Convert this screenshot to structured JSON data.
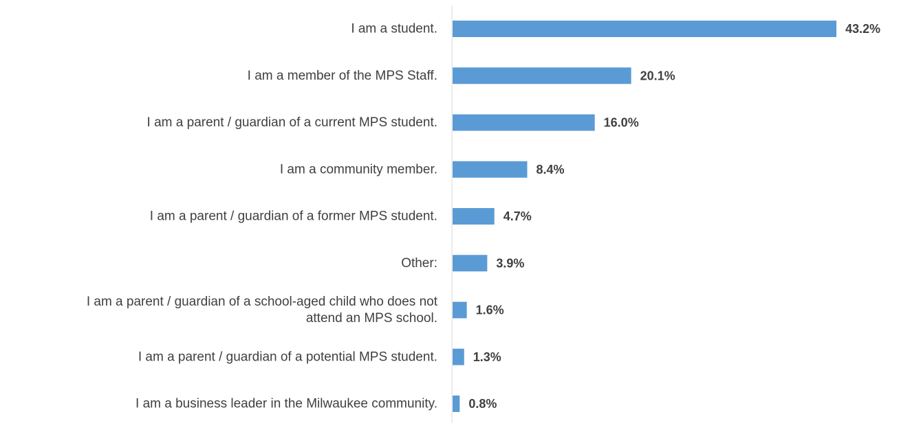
{
  "chart_data": {
    "type": "bar",
    "orientation": "horizontal",
    "categories": [
      [
        "I am a student."
      ],
      [
        "I am a member of the MPS Staff."
      ],
      [
        "I am a parent / guardian of a current MPS student."
      ],
      [
        "I am a community member."
      ],
      [
        "I am a parent / guardian of a former MPS student."
      ],
      [
        "Other:"
      ],
      [
        "I am a parent / guardian of a school-aged child who does not",
        "attend an MPS school."
      ],
      [
        "I am a parent / guardian of a potential MPS student."
      ],
      [
        "I am a business leader in the Milwaukee community."
      ]
    ],
    "values": [
      43.2,
      20.1,
      16.0,
      8.4,
      4.7,
      3.9,
      1.6,
      1.3,
      0.8
    ],
    "value_labels": [
      "43.2%",
      "20.1%",
      "16.0%",
      "8.4%",
      "4.7%",
      "3.9%",
      "1.6%",
      "1.3%",
      "0.8%"
    ],
    "title": "",
    "xlabel": "",
    "ylabel": "",
    "xlim": [
      0,
      45
    ],
    "grid": false,
    "legend": "none",
    "colors": {
      "bar": "#5b9bd5",
      "axis": "#d9d9d9",
      "text": "#404040"
    }
  }
}
